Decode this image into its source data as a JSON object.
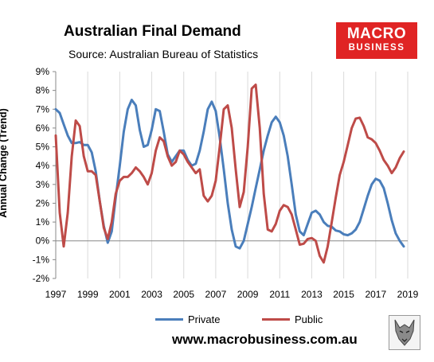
{
  "header": {
    "title": "Australian Final Demand",
    "subtitle": "Source: Australian Bureau of Statistics"
  },
  "logo": {
    "line1": "MACRO",
    "line2": "BUSINESS"
  },
  "footer": {
    "url": "www.macrobusiness.com.au"
  },
  "colors": {
    "private": "#4a7ebb",
    "public": "#be4b48",
    "logo_bg": "#e02424",
    "grid": "#dadada"
  },
  "chart_data": {
    "type": "line",
    "title": "Australian Final Demand",
    "ylabel": "Annual Change (Trend)",
    "xlabel": "",
    "xlim": [
      1997,
      2019
    ],
    "ylim": [
      -2,
      9
    ],
    "x_ticks": [
      "1997",
      "1999",
      "2001",
      "2003",
      "2005",
      "2007",
      "2009",
      "2011",
      "2013",
      "2015",
      "2017",
      "2019"
    ],
    "y_ticks": [
      "-2%",
      "-1%",
      "0%",
      "1%",
      "2%",
      "3%",
      "4%",
      "5%",
      "6%",
      "7%",
      "8%",
      "9%"
    ],
    "grid": "vertical",
    "legend_position": "bottom",
    "series": [
      {
        "name": "Private",
        "color": "#4a7ebb",
        "points": [
          [
            1997.0,
            7.0
          ],
          [
            1997.25,
            6.8
          ],
          [
            1997.5,
            6.2
          ],
          [
            1997.75,
            5.6
          ],
          [
            1998.0,
            5.2
          ],
          [
            1998.25,
            5.2
          ],
          [
            1998.5,
            5.25
          ],
          [
            1998.75,
            5.1
          ],
          [
            1999.0,
            5.1
          ],
          [
            1999.25,
            4.7
          ],
          [
            1999.5,
            3.7
          ],
          [
            1999.75,
            2.1
          ],
          [
            2000.0,
            0.8
          ],
          [
            2000.25,
            -0.1
          ],
          [
            2000.5,
            0.5
          ],
          [
            2000.75,
            2.3
          ],
          [
            2001.0,
            4.0
          ],
          [
            2001.25,
            5.8
          ],
          [
            2001.5,
            7.0
          ],
          [
            2001.75,
            7.5
          ],
          [
            2002.0,
            7.2
          ],
          [
            2002.25,
            5.9
          ],
          [
            2002.5,
            5.0
          ],
          [
            2002.75,
            5.1
          ],
          [
            2003.0,
            5.9
          ],
          [
            2003.25,
            7.0
          ],
          [
            2003.5,
            6.9
          ],
          [
            2003.75,
            5.8
          ],
          [
            2004.0,
            4.6
          ],
          [
            2004.25,
            4.2
          ],
          [
            2004.5,
            4.5
          ],
          [
            2004.75,
            4.8
          ],
          [
            2005.0,
            4.8
          ],
          [
            2005.25,
            4.3
          ],
          [
            2005.5,
            4.0
          ],
          [
            2005.75,
            4.1
          ],
          [
            2006.0,
            4.8
          ],
          [
            2006.25,
            5.8
          ],
          [
            2006.5,
            7.0
          ],
          [
            2006.75,
            7.4
          ],
          [
            2007.0,
            6.9
          ],
          [
            2007.25,
            5.5
          ],
          [
            2007.5,
            3.8
          ],
          [
            2007.75,
            2.0
          ],
          [
            2008.0,
            0.6
          ],
          [
            2008.25,
            -0.3
          ],
          [
            2008.5,
            -0.4
          ],
          [
            2008.75,
            0.0
          ],
          [
            2009.0,
            0.9
          ],
          [
            2009.25,
            1.8
          ],
          [
            2009.5,
            2.8
          ],
          [
            2009.75,
            3.8
          ],
          [
            2010.0,
            4.8
          ],
          [
            2010.25,
            5.6
          ],
          [
            2010.5,
            6.3
          ],
          [
            2010.75,
            6.6
          ],
          [
            2011.0,
            6.3
          ],
          [
            2011.25,
            5.6
          ],
          [
            2011.5,
            4.5
          ],
          [
            2011.75,
            3.0
          ],
          [
            2012.0,
            1.4
          ],
          [
            2012.25,
            0.5
          ],
          [
            2012.5,
            0.3
          ],
          [
            2012.75,
            0.9
          ],
          [
            2013.0,
            1.5
          ],
          [
            2013.25,
            1.6
          ],
          [
            2013.5,
            1.4
          ],
          [
            2013.75,
            1.0
          ],
          [
            2014.0,
            0.8
          ],
          [
            2014.25,
            0.75
          ],
          [
            2014.5,
            0.55
          ],
          [
            2014.75,
            0.5
          ],
          [
            2015.0,
            0.35
          ],
          [
            2015.25,
            0.3
          ],
          [
            2015.5,
            0.4
          ],
          [
            2015.75,
            0.6
          ],
          [
            2016.0,
            1.0
          ],
          [
            2016.25,
            1.7
          ],
          [
            2016.5,
            2.4
          ],
          [
            2016.75,
            3.0
          ],
          [
            2017.0,
            3.3
          ],
          [
            2017.25,
            3.2
          ],
          [
            2017.5,
            2.8
          ],
          [
            2017.75,
            2.0
          ],
          [
            2018.0,
            1.1
          ],
          [
            2018.25,
            0.4
          ],
          [
            2018.5,
            0.0
          ],
          [
            2018.75,
            -0.3
          ]
        ]
      },
      {
        "name": "Public",
        "color": "#be4b48",
        "points": [
          [
            1997.0,
            5.6
          ],
          [
            1997.25,
            1.5
          ],
          [
            1997.5,
            -0.3
          ],
          [
            1997.75,
            1.5
          ],
          [
            1998.0,
            4.5
          ],
          [
            1998.25,
            6.4
          ],
          [
            1998.5,
            6.1
          ],
          [
            1998.75,
            4.5
          ],
          [
            1999.0,
            3.7
          ],
          [
            1999.25,
            3.7
          ],
          [
            1999.5,
            3.5
          ],
          [
            1999.75,
            2.1
          ],
          [
            2000.0,
            0.7
          ],
          [
            2000.25,
            0.1
          ],
          [
            2000.5,
            1.0
          ],
          [
            2000.75,
            2.5
          ],
          [
            2001.0,
            3.2
          ],
          [
            2001.25,
            3.4
          ],
          [
            2001.5,
            3.4
          ],
          [
            2001.75,
            3.6
          ],
          [
            2002.0,
            3.9
          ],
          [
            2002.25,
            3.7
          ],
          [
            2002.5,
            3.4
          ],
          [
            2002.75,
            3.0
          ],
          [
            2003.0,
            3.6
          ],
          [
            2003.25,
            4.8
          ],
          [
            2003.5,
            5.5
          ],
          [
            2003.75,
            5.3
          ],
          [
            2004.0,
            4.5
          ],
          [
            2004.25,
            4.0
          ],
          [
            2004.5,
            4.2
          ],
          [
            2004.75,
            4.8
          ],
          [
            2005.0,
            4.6
          ],
          [
            2005.25,
            4.2
          ],
          [
            2005.5,
            3.9
          ],
          [
            2005.75,
            3.6
          ],
          [
            2006.0,
            3.8
          ],
          [
            2006.25,
            2.4
          ],
          [
            2006.5,
            2.1
          ],
          [
            2006.75,
            2.4
          ],
          [
            2007.0,
            3.2
          ],
          [
            2007.25,
            5.0
          ],
          [
            2007.5,
            7.0
          ],
          [
            2007.75,
            7.2
          ],
          [
            2008.0,
            6.0
          ],
          [
            2008.25,
            3.8
          ],
          [
            2008.5,
            1.8
          ],
          [
            2008.75,
            2.6
          ],
          [
            2009.0,
            5.0
          ],
          [
            2009.25,
            8.1
          ],
          [
            2009.5,
            8.3
          ],
          [
            2009.75,
            6.0
          ],
          [
            2010.0,
            2.5
          ],
          [
            2010.25,
            0.6
          ],
          [
            2010.5,
            0.5
          ],
          [
            2010.75,
            0.9
          ],
          [
            2011.0,
            1.6
          ],
          [
            2011.25,
            1.9
          ],
          [
            2011.5,
            1.8
          ],
          [
            2011.75,
            1.4
          ],
          [
            2012.0,
            0.6
          ],
          [
            2012.25,
            -0.2
          ],
          [
            2012.5,
            -0.15
          ],
          [
            2012.75,
            0.1
          ],
          [
            2013.0,
            0.15
          ],
          [
            2013.25,
            0.0
          ],
          [
            2013.5,
            -0.8
          ],
          [
            2013.75,
            -1.15
          ],
          [
            2014.0,
            -0.3
          ],
          [
            2014.25,
            1.0
          ],
          [
            2014.5,
            2.3
          ],
          [
            2014.75,
            3.5
          ],
          [
            2015.0,
            4.2
          ],
          [
            2015.25,
            5.1
          ],
          [
            2015.5,
            6.0
          ],
          [
            2015.75,
            6.5
          ],
          [
            2016.0,
            6.55
          ],
          [
            2016.25,
            6.1
          ],
          [
            2016.5,
            5.5
          ],
          [
            2016.75,
            5.4
          ],
          [
            2017.0,
            5.2
          ],
          [
            2017.25,
            4.8
          ],
          [
            2017.5,
            4.3
          ],
          [
            2017.75,
            4.0
          ],
          [
            2018.0,
            3.6
          ],
          [
            2018.25,
            3.9
          ],
          [
            2018.5,
            4.4
          ],
          [
            2018.75,
            4.75
          ]
        ]
      }
    ]
  }
}
